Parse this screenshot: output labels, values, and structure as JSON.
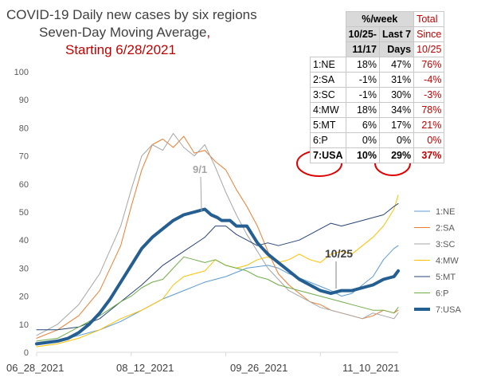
{
  "title": {
    "line1": "COVID-19 Daily new cases by six regions",
    "line2": "Seven-Day Moving Average",
    "line2_comma": ",",
    "line3": "Starting 6/28/2021"
  },
  "chart_data": {
    "type": "line",
    "x": [
      "06_28_2021",
      "08_12_2021",
      "09_26_2021",
      "11_10_2021"
    ],
    "xlabel": "",
    "ylabel": "",
    "ylim": [
      0,
      100
    ],
    "yticks": [
      0,
      10,
      20,
      30,
      40,
      50,
      60,
      70,
      80,
      90,
      100
    ],
    "grid": false,
    "legend": "right",
    "series": [
      {
        "name": "1:NE",
        "color": "#5b9bd5",
        "width": 1,
        "points": [
          [
            0,
            3
          ],
          [
            10,
            4
          ],
          [
            20,
            6
          ],
          [
            30,
            8
          ],
          [
            40,
            11
          ],
          [
            50,
            15
          ],
          [
            60,
            19
          ],
          [
            70,
            22
          ],
          [
            80,
            25
          ],
          [
            90,
            27
          ],
          [
            100,
            30
          ],
          [
            110,
            31
          ],
          [
            115,
            30
          ],
          [
            120,
            28
          ],
          [
            130,
            25
          ],
          [
            140,
            22
          ],
          [
            145,
            20
          ],
          [
            150,
            21
          ],
          [
            155,
            24
          ],
          [
            160,
            27
          ],
          [
            165,
            33
          ],
          [
            170,
            37
          ],
          [
            172,
            38
          ]
        ]
      },
      {
        "name": "2:SA",
        "color": "#ed7d31",
        "width": 1,
        "points": [
          [
            0,
            5
          ],
          [
            10,
            8
          ],
          [
            20,
            13
          ],
          [
            30,
            22
          ],
          [
            40,
            38
          ],
          [
            45,
            52
          ],
          [
            50,
            65
          ],
          [
            55,
            74
          ],
          [
            60,
            76
          ],
          [
            65,
            73
          ],
          [
            70,
            77
          ],
          [
            75,
            71
          ],
          [
            80,
            72
          ],
          [
            85,
            68
          ],
          [
            90,
            65
          ],
          [
            95,
            58
          ],
          [
            100,
            52
          ],
          [
            105,
            45
          ],
          [
            110,
            36
          ],
          [
            115,
            28
          ],
          [
            120,
            24
          ],
          [
            125,
            21
          ],
          [
            130,
            18
          ],
          [
            135,
            17
          ],
          [
            140,
            15
          ],
          [
            145,
            14
          ],
          [
            150,
            13
          ],
          [
            155,
            12
          ],
          [
            160,
            13
          ],
          [
            165,
            15
          ],
          [
            170,
            14
          ],
          [
            172,
            15
          ]
        ]
      },
      {
        "name": "3:SC",
        "color": "#a5a5a5",
        "width": 1,
        "points": [
          [
            0,
            6
          ],
          [
            10,
            10
          ],
          [
            20,
            17
          ],
          [
            30,
            28
          ],
          [
            40,
            45
          ],
          [
            45,
            58
          ],
          [
            50,
            70
          ],
          [
            55,
            74
          ],
          [
            60,
            72
          ],
          [
            65,
            78
          ],
          [
            68,
            75
          ],
          [
            70,
            73
          ],
          [
            75,
            70
          ],
          [
            80,
            74
          ],
          [
            85,
            66
          ],
          [
            90,
            57
          ],
          [
            95,
            49
          ],
          [
            100,
            42
          ],
          [
            105,
            36
          ],
          [
            110,
            30
          ],
          [
            115,
            26
          ],
          [
            120,
            22
          ],
          [
            125,
            20
          ],
          [
            130,
            18
          ],
          [
            135,
            16
          ],
          [
            140,
            15
          ],
          [
            145,
            14
          ],
          [
            150,
            13
          ],
          [
            155,
            12
          ],
          [
            160,
            14
          ],
          [
            165,
            13
          ],
          [
            170,
            12
          ],
          [
            172,
            14
          ]
        ]
      },
      {
        "name": "4:MW",
        "color": "#ffc000",
        "width": 1,
        "points": [
          [
            0,
            2
          ],
          [
            10,
            3
          ],
          [
            20,
            5
          ],
          [
            30,
            8
          ],
          [
            40,
            12
          ],
          [
            50,
            15
          ],
          [
            55,
            17
          ],
          [
            60,
            19
          ],
          [
            65,
            24
          ],
          [
            70,
            27
          ],
          [
            75,
            28
          ],
          [
            80,
            29
          ],
          [
            85,
            33
          ],
          [
            90,
            31
          ],
          [
            95,
            30
          ],
          [
            100,
            31
          ],
          [
            105,
            33
          ],
          [
            110,
            34
          ],
          [
            115,
            32
          ],
          [
            120,
            33
          ],
          [
            125,
            35
          ],
          [
            130,
            33
          ],
          [
            135,
            32
          ],
          [
            140,
            35
          ],
          [
            145,
            36
          ],
          [
            150,
            35
          ],
          [
            155,
            38
          ],
          [
            160,
            41
          ],
          [
            165,
            45
          ],
          [
            170,
            51
          ],
          [
            172,
            56
          ]
        ]
      },
      {
        "name": "5:MT",
        "color": "#264478",
        "width": 1,
        "points": [
          [
            0,
            8
          ],
          [
            10,
            8
          ],
          [
            20,
            9
          ],
          [
            30,
            12
          ],
          [
            40,
            18
          ],
          [
            50,
            24
          ],
          [
            60,
            31
          ],
          [
            70,
            36
          ],
          [
            80,
            41
          ],
          [
            85,
            45
          ],
          [
            90,
            45
          ],
          [
            95,
            42
          ],
          [
            100,
            40
          ],
          [
            105,
            38
          ],
          [
            110,
            39
          ],
          [
            115,
            38
          ],
          [
            120,
            39
          ],
          [
            125,
            40
          ],
          [
            130,
            42
          ],
          [
            135,
            44
          ],
          [
            140,
            46
          ],
          [
            145,
            45
          ],
          [
            150,
            46
          ],
          [
            155,
            47
          ],
          [
            160,
            48
          ],
          [
            165,
            49
          ],
          [
            170,
            52
          ],
          [
            172,
            53
          ]
        ]
      },
      {
        "name": "6:P",
        "color": "#70ad47",
        "width": 1,
        "points": [
          [
            0,
            4
          ],
          [
            10,
            5
          ],
          [
            20,
            9
          ],
          [
            30,
            13
          ],
          [
            40,
            18
          ],
          [
            45,
            20
          ],
          [
            50,
            23
          ],
          [
            55,
            25
          ],
          [
            60,
            26
          ],
          [
            65,
            30
          ],
          [
            70,
            34
          ],
          [
            75,
            33
          ],
          [
            80,
            32
          ],
          [
            85,
            33
          ],
          [
            90,
            31
          ],
          [
            95,
            30
          ],
          [
            100,
            29
          ],
          [
            105,
            27
          ],
          [
            110,
            26
          ],
          [
            115,
            24
          ],
          [
            120,
            23
          ],
          [
            125,
            22
          ],
          [
            130,
            21
          ],
          [
            135,
            20
          ],
          [
            140,
            19
          ],
          [
            145,
            18
          ],
          [
            150,
            17
          ],
          [
            155,
            16
          ],
          [
            160,
            15
          ],
          [
            165,
            15
          ],
          [
            170,
            14
          ],
          [
            172,
            16
          ]
        ]
      },
      {
        "name": "7:USA",
        "color": "#255e91",
        "width": 4,
        "points": [
          [
            0,
            3
          ],
          [
            10,
            4
          ],
          [
            15,
            5
          ],
          [
            20,
            7
          ],
          [
            25,
            10
          ],
          [
            30,
            14
          ],
          [
            35,
            19
          ],
          [
            40,
            25
          ],
          [
            45,
            31
          ],
          [
            50,
            37
          ],
          [
            55,
            41
          ],
          [
            60,
            44
          ],
          [
            65,
            47
          ],
          [
            70,
            49
          ],
          [
            75,
            50
          ],
          [
            80,
            51
          ],
          [
            83,
            49
          ],
          [
            86,
            48
          ],
          [
            88,
            47
          ],
          [
            92,
            47
          ],
          [
            95,
            45
          ],
          [
            98,
            45
          ],
          [
            100,
            45
          ],
          [
            105,
            39
          ],
          [
            110,
            35
          ],
          [
            115,
            32
          ],
          [
            120,
            29
          ],
          [
            125,
            26
          ],
          [
            130,
            24
          ],
          [
            135,
            22
          ],
          [
            140,
            21
          ],
          [
            145,
            22
          ],
          [
            150,
            22
          ],
          [
            155,
            23
          ],
          [
            160,
            24
          ],
          [
            165,
            26
          ],
          [
            170,
            27
          ],
          [
            172,
            29
          ]
        ]
      }
    ],
    "annotations": [
      {
        "text": "9/1",
        "color": "#a5a5a5"
      },
      {
        "text": "10/25",
        "color": "#404040"
      }
    ]
  },
  "table": {
    "header1": [
      "%/week",
      "Total"
    ],
    "header2": [
      "10/25-",
      "Last 7",
      "Since"
    ],
    "header3": [
      "11/17",
      "Days",
      "10/25"
    ],
    "rows": [
      {
        "label": "1:NE",
        "a": "18%",
        "b": "47%",
        "c": "76%"
      },
      {
        "label": "2:SA",
        "a": "-1%",
        "b": "31%",
        "c": "-4%"
      },
      {
        "label": "3:SC",
        "a": "-1%",
        "b": "30%",
        "c": "-3%"
      },
      {
        "label": "4:MW",
        "a": "18%",
        "b": "34%",
        "c": "78%"
      },
      {
        "label": "5:MT",
        "a": "6%",
        "b": "17%",
        "c": "21%"
      },
      {
        "label": "6:P",
        "a": "0%",
        "b": "0%",
        "c": "0%"
      },
      {
        "label": "7:USA",
        "a": "10%",
        "b": "29%",
        "c": "37%"
      }
    ]
  },
  "colors": {
    "highlight": "#e00000",
    "text": "#404040",
    "red_text": "#c00000"
  }
}
